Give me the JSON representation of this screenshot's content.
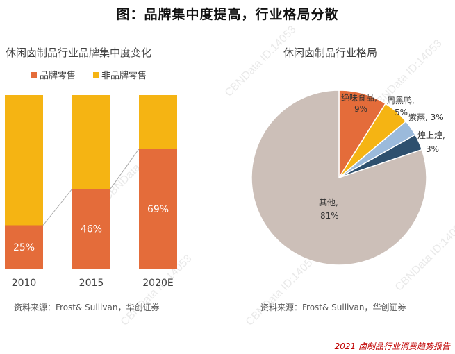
{
  "page": {
    "title": "图：品牌集中度提高，行业格局分散",
    "footer": "2021 卤制品行业消费趋势报告",
    "watermark": "CBNData ID:14053"
  },
  "chart_data": [
    {
      "type": "bar",
      "stacked": true,
      "title": "休闲卤制品行业品牌集中度变化",
      "categories": [
        "2010",
        "2015",
        "2020E"
      ],
      "series": [
        {
          "name": "品牌零售",
          "values": [
            25,
            46,
            69
          ],
          "labels": [
            "25%",
            "46%",
            "69%"
          ],
          "color": "#E46C3A"
        },
        {
          "name": "非品牌零售",
          "values": [
            75,
            54,
            31
          ],
          "color": "#F5B413"
        }
      ],
      "ylim": [
        0,
        100
      ],
      "legend_position": "top",
      "source": "资料来源：Frost& Sullivan，华创证券"
    },
    {
      "type": "pie",
      "title": "休闲卤制品行业格局",
      "slices": [
        {
          "name": "绝味食品",
          "value": 9,
          "label": "9%",
          "color": "#E46C3A"
        },
        {
          "name": "周黑鸭",
          "value": 5,
          "label": "5%",
          "color": "#F5B413"
        },
        {
          "name": "紫燕",
          "value": 3,
          "label": "3%",
          "color": "#9BBADB"
        },
        {
          "name": "煌上煌",
          "value": 3,
          "label": "3%",
          "color": "#2E506E"
        },
        {
          "name": "其他",
          "value": 81,
          "label": "81%",
          "color": "#CCBFB8"
        }
      ],
      "slice_labels": {
        "juewei_name": "绝味食品,",
        "zhouheiya_name": "周黑鸭,",
        "ziyan": "紫燕, 3%",
        "huangshanghuang_name": "煌上煌,",
        "other_name": "其他,"
      },
      "source": "资料来源：Frost& Sullivan，华创证券"
    }
  ]
}
